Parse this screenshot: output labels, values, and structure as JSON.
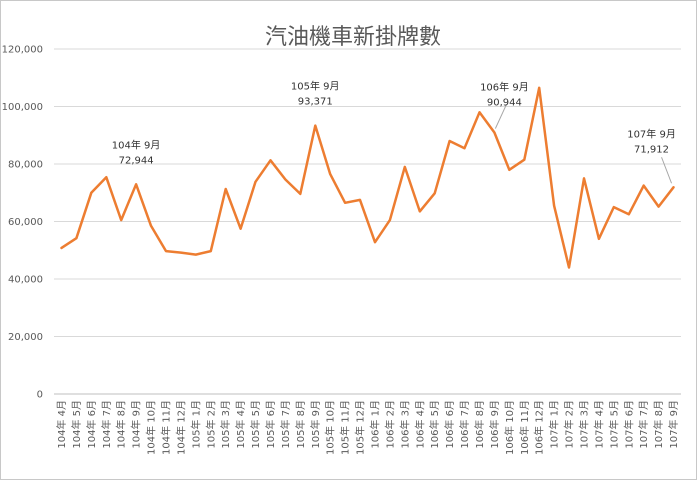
{
  "chart_data": {
    "type": "line",
    "title": "汽油機車新掛牌數",
    "xlabel": "",
    "ylabel": "",
    "ylim": [
      0,
      120000
    ],
    "yticks": [
      "0",
      "20,000",
      "40,000",
      "60,000",
      "80,000",
      "100,000",
      "120,000"
    ],
    "grid": true,
    "legend": "none",
    "color": "#ED7D31",
    "categories": [
      "104年 4月",
      "104年 5月",
      "104年 6月",
      "104年 7月",
      "104年 8月",
      "104年 9月",
      "104年 10月",
      "104年 11月",
      "104年 12月",
      "105年 1月",
      "105年 2月",
      "105年 3月",
      "105年 4月",
      "105年 5月",
      "105年 6月",
      "105年 7月",
      "105年 8月",
      "105年 9月",
      "105年 10月",
      "105年 11月",
      "105年 12月",
      "106年 1月",
      "106年 2月",
      "106年 3月",
      "106年 4月",
      "106年 5月",
      "106年 6月",
      "106年 7月",
      "106年 8月",
      "106年 9月",
      "106年 10月",
      "106年 11月",
      "106年 12月",
      "107年 1月",
      "107年 2月",
      "107年 3月",
      "107年 4月",
      "107年 5月",
      "107年 6月",
      "107年 7月",
      "107年 8月",
      "107年 9月"
    ],
    "series": [
      {
        "values": [
          50800,
          54200,
          70000,
          75400,
          60500,
          72944,
          58500,
          49700,
          49200,
          48500,
          49700,
          71300,
          57500,
          73800,
          81300,
          74600,
          69600,
          93371,
          76500,
          66500,
          67500,
          52800,
          60500,
          79000,
          63500,
          69800,
          88000,
          85500,
          98000,
          90944,
          78000,
          81500,
          106500,
          65500,
          44000,
          75000,
          54000,
          65000,
          62500,
          72500,
          65200,
          71912
        ],
        "labels": [
          {
            "index": 5,
            "line1": "104年 9月",
            "line2": "72,944"
          },
          {
            "index": 17,
            "line1": "105年 9月",
            "line2": "93,371"
          },
          {
            "index": 29,
            "line1": "106年 9月",
            "line2": "90,944"
          },
          {
            "index": 41,
            "line1": "107年 9月",
            "line2": "71,912"
          }
        ]
      }
    ]
  }
}
